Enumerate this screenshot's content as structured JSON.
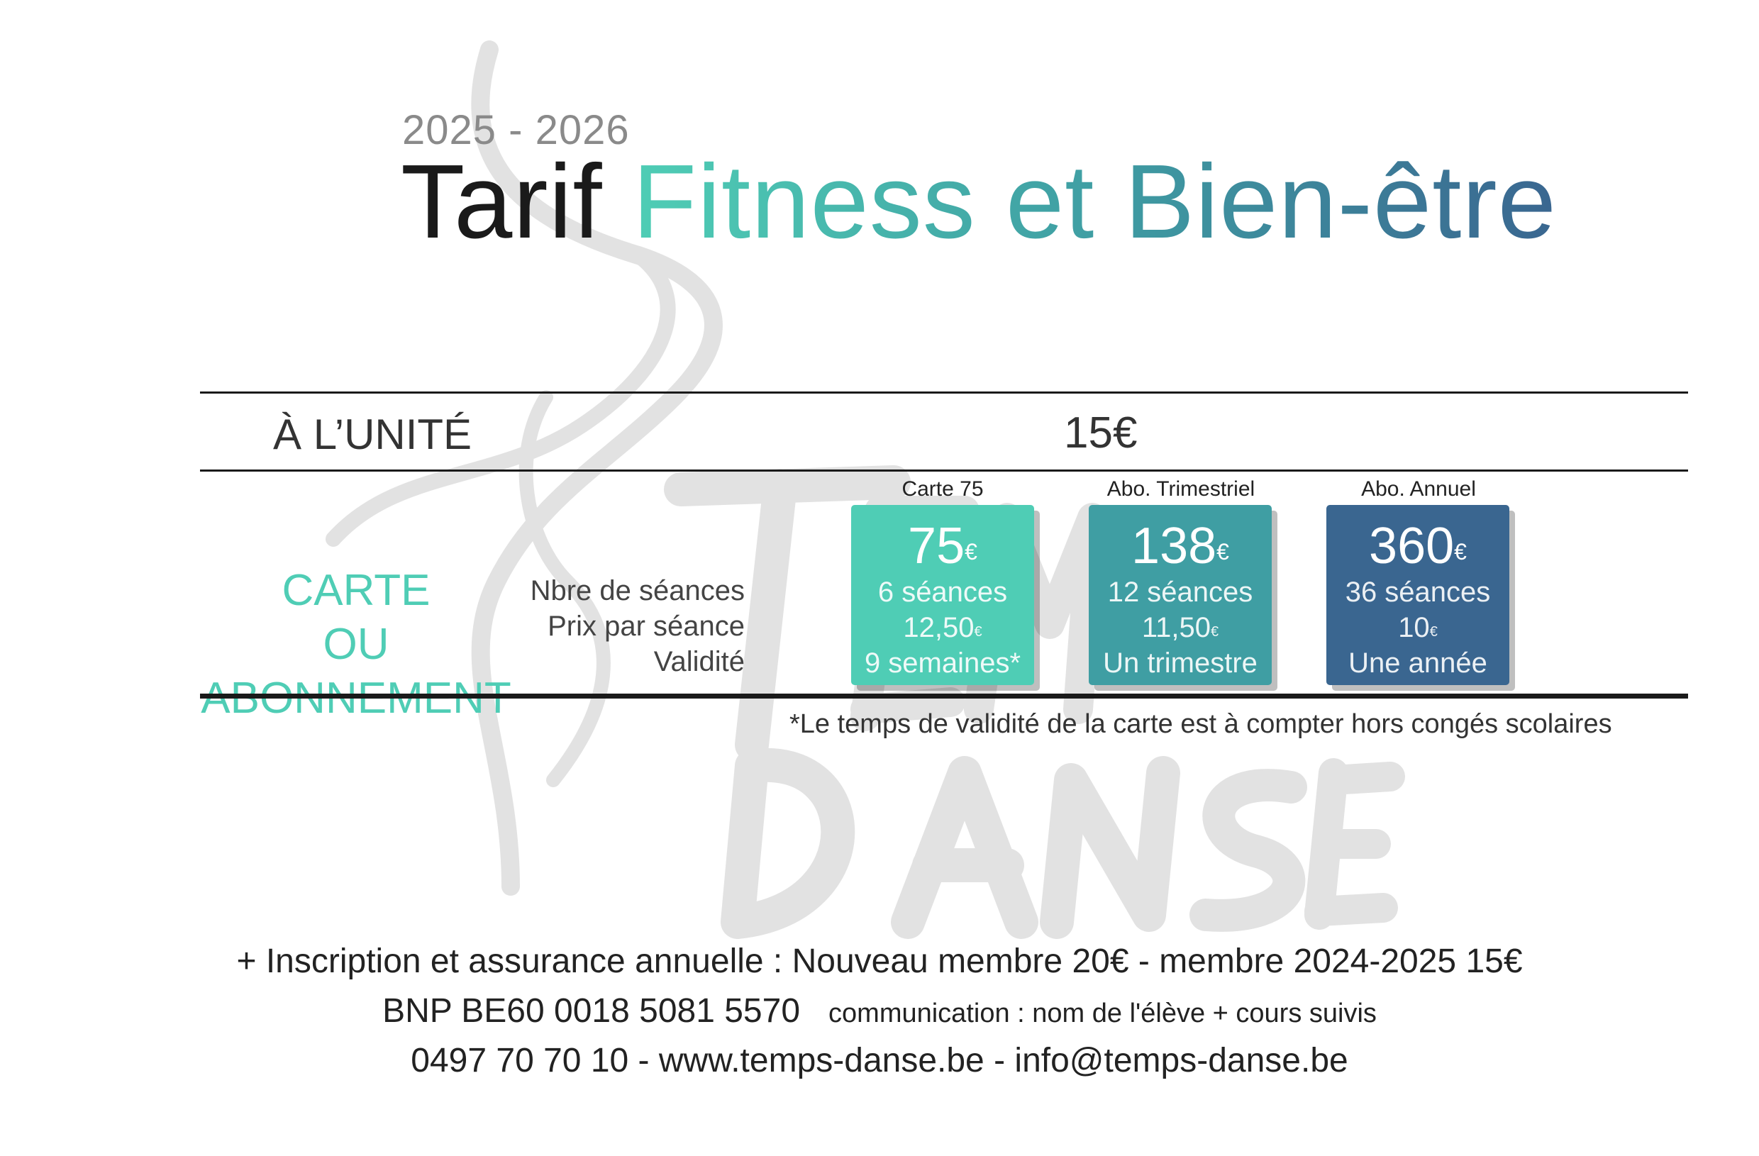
{
  "header": {
    "year": "2025 - 2026",
    "title_black": "Tarif",
    "title_colored": "Fitness et Bien-être"
  },
  "unit_row": {
    "label": "À L’UNITÉ",
    "price": "15€"
  },
  "subscription_row": {
    "label_line1": "CARTE",
    "label_line2": "OU ABONNEMENT",
    "row_labels": [
      "Nbre de séances",
      "Prix par séance",
      "Validité"
    ]
  },
  "cards": [
    {
      "name": "Carte 75",
      "price": "75",
      "currency": "€",
      "sessions": "6 séances",
      "per_session": "12,50",
      "validity": "9 semaines*",
      "color": "#4fcdb5"
    },
    {
      "name": "Abo. Trimestriel",
      "price": "138",
      "currency": "€",
      "sessions": "12 séances",
      "per_session": "11,50",
      "validity": "Un trimestre",
      "color": "#3f9ea3"
    },
    {
      "name": "Abo. Annuel",
      "price": "360",
      "currency": "€",
      "sessions": "36 séances",
      "per_session": "10",
      "validity": "Une année",
      "color": "#3a6690"
    }
  ],
  "footnote": "*Le temps de validité  de la carte est à compter hors congés scolaires",
  "footer": {
    "line1": "+ Inscription et assurance annuelle : Nouveau membre 20€ - membre 2024-2025 15€",
    "bank": "BNP BE60 0018 5081 5570",
    "communication": "communication : nom de l'élève  +  cours suivis",
    "line3": "0497 70 70 10  -  www.temps-danse.be  -  info@temps-danse.be"
  },
  "watermark_logo_text": "Temps Danse"
}
